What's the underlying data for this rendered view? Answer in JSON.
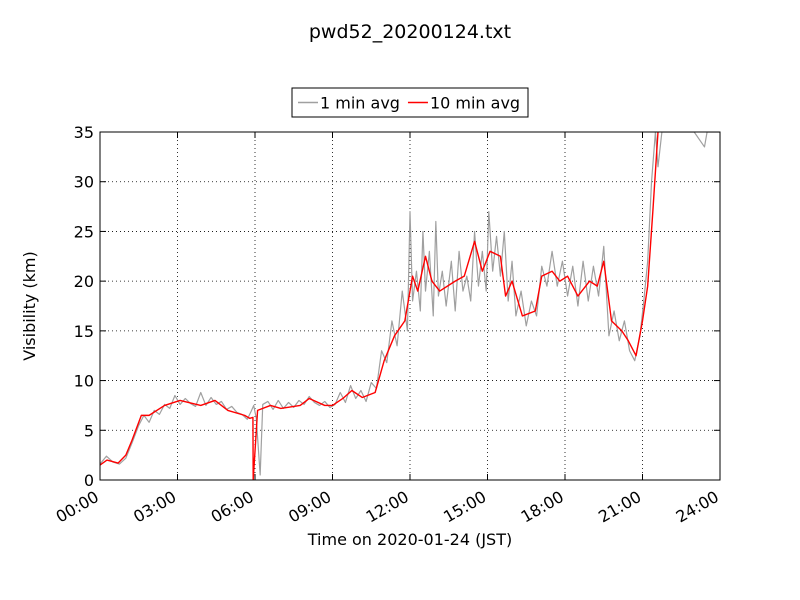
{
  "chart_data": {
    "type": "line",
    "title": "pwd52_20200124.txt",
    "xlabel": "Time on 2020-01-24 (JST)",
    "ylabel": "Visibility (km)",
    "xlim": [
      0,
      24
    ],
    "xticks": [
      {
        "value": 0,
        "label": "00:00"
      },
      {
        "value": 3,
        "label": "03:00"
      },
      {
        "value": 6,
        "label": "06:00"
      },
      {
        "value": 9,
        "label": "09:00"
      },
      {
        "value": 12,
        "label": "12:00"
      },
      {
        "value": 15,
        "label": "15:00"
      },
      {
        "value": 18,
        "label": "18:00"
      },
      {
        "value": 21,
        "label": "21:00"
      },
      {
        "value": 24,
        "label": "24:00"
      }
    ],
    "ylim": [
      0,
      35
    ],
    "yticks": [
      0,
      5,
      10,
      15,
      20,
      25,
      30,
      35
    ],
    "grid": true,
    "legend": "upper center",
    "series": [
      {
        "name": "1 min avg",
        "color": "#a0a0a0",
        "x": [
          0,
          0.25,
          0.5,
          0.75,
          1,
          1.25,
          1.5,
          1.7,
          1.9,
          2.1,
          2.3,
          2.5,
          2.7,
          2.9,
          3.1,
          3.3,
          3.5,
          3.7,
          3.9,
          4.1,
          4.3,
          4.5,
          4.7,
          4.9,
          5.1,
          5.3,
          5.5,
          5.7,
          5.85,
          5.95,
          6.05,
          6.2,
          6.3,
          6.5,
          6.7,
          6.9,
          7.1,
          7.3,
          7.5,
          7.7,
          7.9,
          8.1,
          8.3,
          8.5,
          8.7,
          8.9,
          9.1,
          9.3,
          9.5,
          9.7,
          9.9,
          10.1,
          10.3,
          10.5,
          10.7,
          10.9,
          11.1,
          11.3,
          11.5,
          11.7,
          11.9,
          12.0,
          12.1,
          12.25,
          12.4,
          12.5,
          12.6,
          12.75,
          12.9,
          13.0,
          13.1,
          13.25,
          13.4,
          13.6,
          13.75,
          13.9,
          14.05,
          14.2,
          14.35,
          14.5,
          14.65,
          14.8,
          14.95,
          15.05,
          15.2,
          15.35,
          15.5,
          15.65,
          15.8,
          15.95,
          16.1,
          16.3,
          16.5,
          16.7,
          16.9,
          17.1,
          17.3,
          17.5,
          17.7,
          17.9,
          18.1,
          18.3,
          18.5,
          18.7,
          18.9,
          19.1,
          19.3,
          19.5,
          19.7,
          19.9,
          20.1,
          20.3,
          20.5,
          20.7,
          20.9,
          21.05,
          21.2,
          21.35,
          21.5,
          21.6,
          21.75,
          22,
          22.5,
          23,
          23.4,
          23.5,
          24
        ],
        "values": [
          1.6,
          2.4,
          1.8,
          1.6,
          2.2,
          3.8,
          5.5,
          6.5,
          5.8,
          7,
          6.6,
          7.6,
          7.2,
          8.5,
          7.6,
          8.2,
          7.7,
          7.4,
          8.8,
          7.5,
          8.3,
          7.6,
          7.9,
          7.1,
          7.4,
          6.8,
          6.6,
          6.1,
          6.9,
          7.5,
          6.2,
          0.5,
          7.6,
          7.9,
          7.1,
          8.0,
          7.2,
          7.8,
          7.3,
          8.0,
          7.6,
          8.4,
          7.8,
          7.5,
          7.9,
          7.3,
          7.6,
          8.8,
          7.8,
          9.5,
          8.2,
          9.0,
          7.9,
          9.8,
          9.2,
          13,
          11.8,
          16,
          13.5,
          19,
          15,
          27,
          18,
          21,
          17,
          25,
          19,
          23,
          16.5,
          26,
          18.5,
          21,
          17.5,
          22,
          17,
          23,
          19,
          20.5,
          18,
          25,
          19.5,
          23,
          19,
          27,
          21,
          24.5,
          20.5,
          25,
          18,
          22,
          16.5,
          19,
          15.5,
          18,
          16.5,
          21.5,
          19.5,
          23,
          19.5,
          22,
          18.5,
          21.5,
          17.5,
          22,
          18,
          21.5,
          18.5,
          23.5,
          14.5,
          17,
          14,
          16,
          13,
          12,
          14.5,
          18,
          22,
          30,
          35,
          31.5,
          35,
          35,
          35,
          35,
          33.5,
          35,
          35
        ]
      },
      {
        "name": "10 min avg",
        "color": "#ff0000",
        "x": [
          0,
          0.27,
          0.7,
          1.0,
          1.24,
          1.6,
          1.9,
          2.5,
          3.1,
          3.9,
          4.45,
          4.95,
          5.6,
          5.8,
          5.92,
          5.93,
          6.1,
          6.6,
          7.0,
          7.75,
          8.1,
          8.7,
          9.0,
          9.4,
          9.75,
          10.15,
          10.65,
          11.0,
          11.4,
          11.8,
          12.1,
          12.3,
          12.6,
          12.85,
          13.15,
          13.75,
          14.1,
          14.5,
          14.8,
          15.1,
          15.5,
          15.7,
          15.95,
          16.35,
          16.85,
          17.1,
          17.5,
          17.8,
          18.1,
          18.5,
          18.95,
          19.25,
          19.5,
          19.8,
          20.2,
          20.45,
          20.75,
          21.0,
          21.2,
          21.4,
          21.6
        ],
        "values": [
          1.5,
          2.0,
          1.7,
          2.5,
          4.0,
          6.5,
          6.5,
          7.5,
          8.0,
          7.5,
          8.0,
          7.0,
          6.5,
          6.2,
          6.3,
          0,
          7.0,
          7.5,
          7.2,
          7.5,
          8.2,
          7.5,
          7.5,
          8.2,
          9.0,
          8.3,
          8.8,
          12,
          14.5,
          16,
          20.5,
          19,
          22.5,
          20,
          19,
          20,
          20.5,
          24,
          21,
          23,
          22.5,
          18.5,
          20,
          16.5,
          17,
          20.5,
          21,
          20,
          20.5,
          18.5,
          20,
          19.5,
          22,
          16,
          15,
          14,
          12.5,
          16,
          19.5,
          27,
          35
        ]
      }
    ]
  }
}
